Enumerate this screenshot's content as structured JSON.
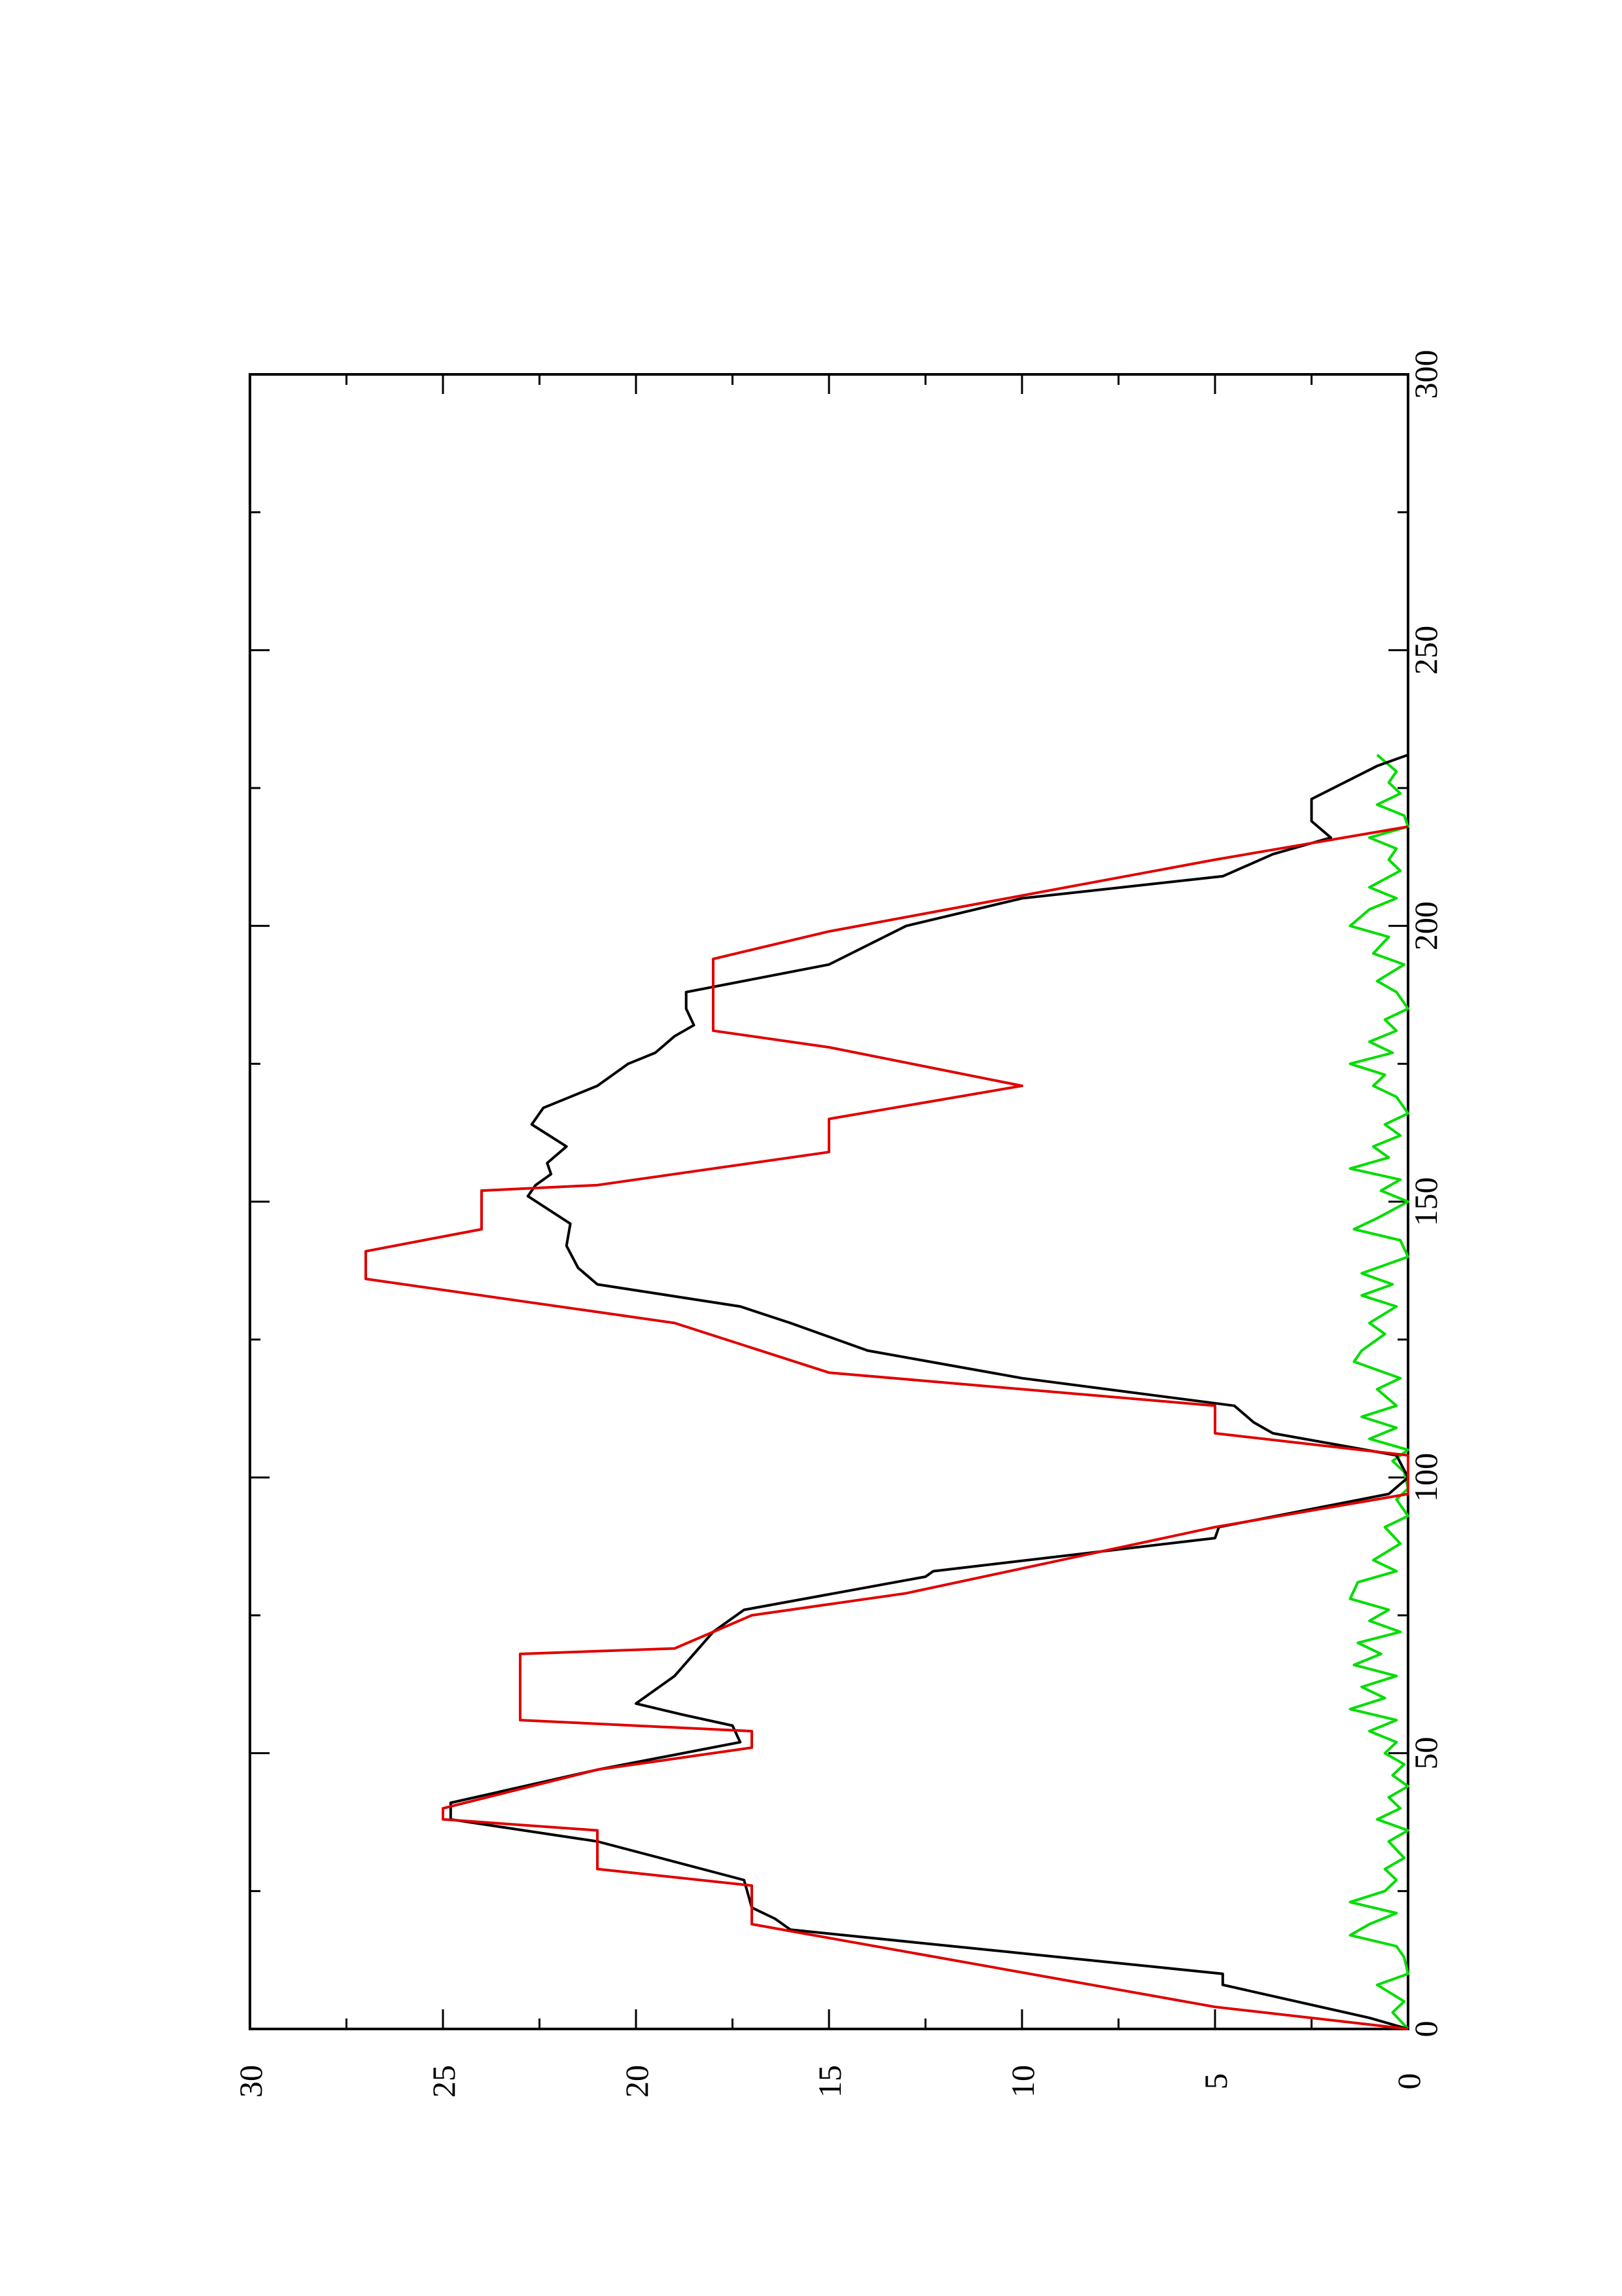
{
  "chart_data": {
    "type": "line",
    "orientation": "rotated-90",
    "title": "",
    "xlabel": "",
    "ylabel": "",
    "xlim": [
      0,
      300
    ],
    "ylim": [
      0,
      30
    ],
    "x_ticks": [
      0,
      50,
      100,
      150,
      200,
      250,
      300
    ],
    "x_minor_ticks": [
      25,
      75,
      125,
      175,
      225,
      275
    ],
    "y_ticks": [
      0,
      5,
      10,
      15,
      20,
      25,
      30
    ],
    "y_minor_ticks": [
      2.5,
      7.5,
      12.5,
      17.5,
      22.5,
      27.5
    ],
    "grid": false,
    "legend": "none",
    "series": [
      {
        "color": "#e00000",
        "points": [
          [
            0,
            0
          ],
          [
            4,
            5
          ],
          [
            19,
            17
          ],
          [
            26,
            17
          ],
          [
            29,
            21
          ],
          [
            36,
            21
          ],
          [
            38,
            25
          ],
          [
            40,
            25
          ],
          [
            47,
            21
          ],
          [
            51,
            17
          ],
          [
            54,
            17
          ],
          [
            56,
            23
          ],
          [
            68,
            23
          ],
          [
            69,
            19
          ],
          [
            75,
            17
          ],
          [
            79,
            13
          ],
          [
            91,
            5
          ],
          [
            97,
            0
          ],
          [
            104,
            0
          ],
          [
            108,
            5
          ],
          [
            113,
            5
          ],
          [
            119,
            15
          ],
          [
            128,
            19
          ],
          [
            130,
            21
          ],
          [
            136,
            27
          ],
          [
            141,
            27
          ],
          [
            145,
            24
          ],
          [
            152,
            24
          ],
          [
            153,
            21
          ],
          [
            159,
            15
          ],
          [
            165,
            15
          ],
          [
            171,
            10
          ],
          [
            178,
            15
          ],
          [
            181,
            18
          ],
          [
            194,
            18
          ],
          [
            199,
            15
          ],
          [
            212,
            5
          ],
          [
            218,
            0
          ]
        ]
      },
      {
        "color": "#000000",
        "points": [
          [
            0,
            0
          ],
          [
            2,
            1
          ],
          [
            8,
            4.8
          ],
          [
            10,
            4.8
          ],
          [
            18,
            16
          ],
          [
            20,
            16.4
          ],
          [
            22,
            17
          ],
          [
            27,
            17.2
          ],
          [
            34,
            21
          ],
          [
            38,
            24.8
          ],
          [
            41,
            24.8
          ],
          [
            47,
            21
          ],
          [
            52,
            17.3
          ],
          [
            55,
            17.5
          ],
          [
            57,
            18.8
          ],
          [
            59,
            20
          ],
          [
            64,
            19
          ],
          [
            68,
            18.5
          ],
          [
            72,
            18
          ],
          [
            76,
            17.2
          ],
          [
            82,
            12.5
          ],
          [
            83,
            12.3
          ],
          [
            89,
            5
          ],
          [
            91,
            4.9
          ],
          [
            97,
            0.5
          ],
          [
            100,
            0
          ],
          [
            104,
            0.3
          ],
          [
            108,
            3.5
          ],
          [
            110,
            4
          ],
          [
            113,
            4.5
          ],
          [
            118,
            10
          ],
          [
            123,
            14
          ],
          [
            128,
            16
          ],
          [
            131,
            17.3
          ],
          [
            135,
            21
          ],
          [
            138,
            21.5
          ],
          [
            142,
            21.8
          ],
          [
            146,
            21.7
          ],
          [
            151,
            22.8
          ],
          [
            153,
            22.6
          ],
          [
            155,
            22.2
          ],
          [
            157,
            22.3
          ],
          [
            160,
            21.8
          ],
          [
            164,
            22.7
          ],
          [
            167,
            22.4
          ],
          [
            171,
            21
          ],
          [
            175,
            20.2
          ],
          [
            177,
            19.5
          ],
          [
            180,
            19
          ],
          [
            182,
            18.5
          ],
          [
            185,
            18.7
          ],
          [
            188,
            18.7
          ],
          [
            193,
            15
          ],
          [
            200,
            13
          ],
          [
            205,
            10
          ],
          [
            209,
            4.8
          ],
          [
            213,
            3.5
          ],
          [
            216,
            2
          ],
          [
            219,
            2.5
          ],
          [
            223,
            2.5
          ],
          [
            229,
            0.8
          ],
          [
            231,
            0
          ]
        ]
      },
      {
        "color": "#00dd00",
        "points": [
          [
            0,
            0
          ],
          [
            3,
            0.4
          ],
          [
            5,
            0.1
          ],
          [
            8,
            0.8
          ],
          [
            10,
            0
          ],
          [
            13,
            0.1
          ],
          [
            15,
            0.3
          ],
          [
            17,
            1.5
          ],
          [
            19,
            1
          ],
          [
            21,
            0.3
          ],
          [
            23,
            1.5
          ],
          [
            25,
            0.6
          ],
          [
            27,
            0.3
          ],
          [
            29,
            0.6
          ],
          [
            31,
            0.1
          ],
          [
            34,
            0.5
          ],
          [
            36,
            0
          ],
          [
            38,
            0.8
          ],
          [
            40,
            0.2
          ],
          [
            42,
            0.5
          ],
          [
            44,
            0
          ],
          [
            46,
            0.4
          ],
          [
            48,
            0.1
          ],
          [
            50,
            0.6
          ],
          [
            52,
            0.3
          ],
          [
            54,
            1
          ],
          [
            56,
            0.3
          ],
          [
            58,
            1.5
          ],
          [
            60,
            0.6
          ],
          [
            62,
            1.2
          ],
          [
            64,
            0.3
          ],
          [
            66,
            1.4
          ],
          [
            68,
            0.7
          ],
          [
            70,
            1.3
          ],
          [
            72,
            0.2
          ],
          [
            74,
            1
          ],
          [
            76,
            0.5
          ],
          [
            78,
            1.5
          ],
          [
            81,
            1.3
          ],
          [
            83,
            0.3
          ],
          [
            85,
            0.9
          ],
          [
            88,
            0.2
          ],
          [
            91,
            0.6
          ],
          [
            93,
            0
          ],
          [
            96,
            0.3
          ],
          [
            98,
            0
          ],
          [
            101,
            0.1
          ],
          [
            103,
            0.4
          ],
          [
            105,
            0
          ],
          [
            107,
            1
          ],
          [
            109,
            0.3
          ],
          [
            111,
            1.2
          ],
          [
            113,
            0.3
          ],
          [
            116,
            0.8
          ],
          [
            118,
            0.2
          ],
          [
            121,
            1.4
          ],
          [
            123,
            1.2
          ],
          [
            126,
            0.6
          ],
          [
            128,
            1
          ],
          [
            131,
            0.3
          ],
          [
            133,
            1.2
          ],
          [
            135,
            0.4
          ],
          [
            137,
            1.2
          ],
          [
            140,
            0
          ],
          [
            143,
            0.2
          ],
          [
            145,
            1.4
          ],
          [
            147,
            0.8
          ],
          [
            150,
            0
          ],
          [
            152,
            0.7
          ],
          [
            154,
            0.2
          ],
          [
            156,
            1.5
          ],
          [
            158,
            0.5
          ],
          [
            160,
            0.9
          ],
          [
            162,
            0.2
          ],
          [
            164,
            0.6
          ],
          [
            166,
            0
          ],
          [
            169,
            0.3
          ],
          [
            171,
            0.9
          ],
          [
            173,
            0.6
          ],
          [
            175,
            1.5
          ],
          [
            177,
            0.4
          ],
          [
            179,
            1
          ],
          [
            181,
            0.3
          ],
          [
            183,
            0.6
          ],
          [
            185,
            0
          ],
          [
            188,
            0.3
          ],
          [
            190,
            0.8
          ],
          [
            193,
            0.1
          ],
          [
            195,
            0.9
          ],
          [
            198,
            0.5
          ],
          [
            200,
            1.5
          ],
          [
            203,
            1
          ],
          [
            205,
            0.3
          ],
          [
            207,
            1
          ],
          [
            210,
            0.2
          ],
          [
            212,
            0.5
          ],
          [
            214,
            0.3
          ],
          [
            216,
            1
          ],
          [
            218,
            0
          ],
          [
            220,
            0.1
          ],
          [
            222,
            0.8
          ],
          [
            224,
            0.2
          ],
          [
            226,
            0.5
          ],
          [
            228,
            0.3
          ],
          [
            231,
            0.8
          ]
        ]
      }
    ]
  }
}
